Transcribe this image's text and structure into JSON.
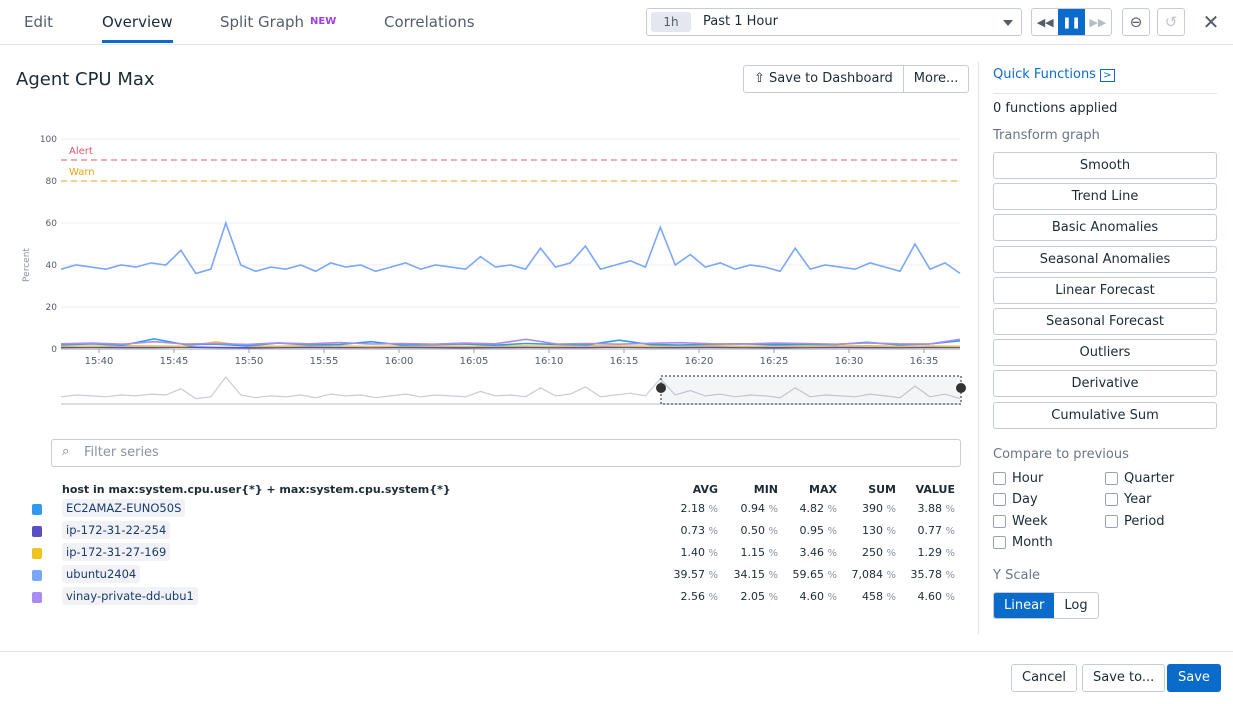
{
  "tabs": {
    "edit": "Edit",
    "overview": "Overview",
    "split": "Split Graph",
    "split_badge": "NEW",
    "correlations": "Correlations"
  },
  "time": {
    "pill": "1h",
    "label": "Past 1 Hour"
  },
  "graph": {
    "title": "Agent CPU Max",
    "save_dashboard": "Save to Dashboard",
    "more": "More..."
  },
  "quick": {
    "title": "Quick Functions",
    "applied": "0 functions applied",
    "transform_label": "Transform graph",
    "functions": [
      "Smooth",
      "Trend Line",
      "Basic Anomalies",
      "Seasonal Anomalies",
      "Linear Forecast",
      "Seasonal Forecast",
      "Outliers",
      "Derivative",
      "Cumulative Sum"
    ],
    "compare_label": "Compare to previous",
    "compare": [
      "Hour",
      "Quarter",
      "Day",
      "Year",
      "Week",
      "Period",
      "Month"
    ],
    "yscale_label": "Y Scale",
    "yscale": [
      "Linear",
      "Log"
    ],
    "yscale_selected": "Linear"
  },
  "filter": {
    "placeholder": "Filter series"
  },
  "table": {
    "group_header": "host in max:system.cpu.user{*} + max:system.cpu.system{*}",
    "columns": [
      "AVG",
      "MIN",
      "MAX",
      "SUM",
      "VALUE"
    ],
    "unit": "%",
    "rows": [
      {
        "host": "EC2AMAZ-EUNO50S",
        "color": "#2f9bee",
        "avg": "2.18",
        "min": "0.94",
        "max": "4.82",
        "sum": "390",
        "value": "3.88"
      },
      {
        "host": "ip-172-31-22-254",
        "color": "#5a4fc2",
        "avg": "0.73",
        "min": "0.50",
        "max": "0.95",
        "sum": "130",
        "value": "0.77"
      },
      {
        "host": "ip-172-31-27-169",
        "color": "#f0c31f",
        "avg": "1.40",
        "min": "1.15",
        "max": "3.46",
        "sum": "250",
        "value": "1.29"
      },
      {
        "host": "ubuntu2404",
        "color": "#7ba7f7",
        "avg": "39.57",
        "min": "34.15",
        "max": "59.65",
        "sum": "7,084",
        "value": "35.78"
      },
      {
        "host": "vinay-private-dd-ubu1",
        "color": "#a98bf5",
        "avg": "2.56",
        "min": "2.05",
        "max": "4.60",
        "sum": "458",
        "value": "4.60"
      }
    ]
  },
  "footer": {
    "cancel": "Cancel",
    "save_to": "Save to...",
    "save": "Save"
  },
  "chart_data": {
    "type": "line",
    "ylabel": "Percent",
    "ylim": [
      0,
      100
    ],
    "yticks": [
      "0",
      "20",
      "40",
      "60",
      "80",
      "100"
    ],
    "xticks": [
      "15:40",
      "15:45",
      "15:50",
      "15:55",
      "16:00",
      "16:05",
      "16:10",
      "16:15",
      "16:20",
      "16:25",
      "16:30",
      "16:35"
    ],
    "markers": [
      {
        "label": "Alert",
        "value": 90,
        "color": "#e0566b"
      },
      {
        "label": "Warn",
        "value": 80,
        "color": "#e9a31a"
      }
    ],
    "series": [
      {
        "name": "ubuntu2404",
        "color": "#7ba7f7",
        "values": [
          38,
          40,
          39,
          38,
          40,
          39,
          41,
          40,
          47,
          36,
          38,
          60,
          40,
          37,
          39,
          38,
          40,
          37,
          41,
          39,
          40,
          37,
          39,
          41,
          38,
          40,
          39,
          38,
          44,
          39,
          40,
          38,
          48,
          39,
          41,
          49,
          38,
          40,
          42,
          39,
          58,
          40,
          45,
          39,
          41,
          38,
          40,
          39,
          37,
          48,
          38,
          40,
          39,
          38,
          41,
          39,
          37,
          50,
          38,
          41,
          36
        ]
      },
      {
        "name": "vinay-private-dd-ubu1",
        "color": "#a98bf5",
        "values": [
          2.5,
          2.8,
          2.3,
          3.5,
          2.4,
          2.6,
          2.2,
          2.9,
          2.5,
          3.1,
          2.4,
          2.6,
          2.3,
          2.8,
          2.5,
          4.6,
          2.4,
          2.6,
          2.3,
          2.7,
          3.0,
          2.5,
          2.4,
          2.8,
          2.6,
          2.3,
          2.9,
          2.5,
          2.4,
          4.6
        ]
      },
      {
        "name": "EC2AMAZ-EUNO50S",
        "color": "#2f9bee",
        "values": [
          2.0,
          2.5,
          1.8,
          4.8,
          2.1,
          2.3,
          1.5,
          2.8,
          2.0,
          2.2,
          3.5,
          1.9,
          2.1,
          2.4,
          1.8,
          2.6,
          2.2,
          2.0,
          4.2,
          2.1,
          1.9,
          2.3,
          2.5,
          2.0,
          2.2,
          2.1,
          3.2,
          2.0,
          2.4,
          3.9
        ]
      },
      {
        "name": "ip-172-31-27-169",
        "color": "#f0c31f",
        "values": [
          1.4,
          1.3,
          1.5,
          1.4,
          1.3,
          3.4,
          1.4,
          1.3,
          1.5,
          1.4,
          1.2,
          1.4,
          1.5,
          1.3,
          1.4,
          1.4,
          1.3,
          1.5,
          1.4,
          1.3,
          1.4,
          1.5,
          1.3,
          1.4,
          1.3,
          1.4,
          1.5,
          1.3,
          1.4,
          1.3
        ]
      },
      {
        "name": "ip-172-31-22-254",
        "color": "#5a4fc2",
        "values": [
          0.7,
          0.8,
          0.7,
          0.7,
          0.9,
          0.7,
          0.6,
          0.7,
          0.8,
          0.7,
          0.7,
          0.8,
          0.7,
          0.6,
          0.7,
          0.8,
          0.7,
          0.7,
          0.9,
          0.7,
          0.7,
          0.8,
          0.7,
          0.6,
          0.7,
          0.8,
          0.7,
          0.7,
          0.8,
          0.8
        ]
      }
    ]
  }
}
